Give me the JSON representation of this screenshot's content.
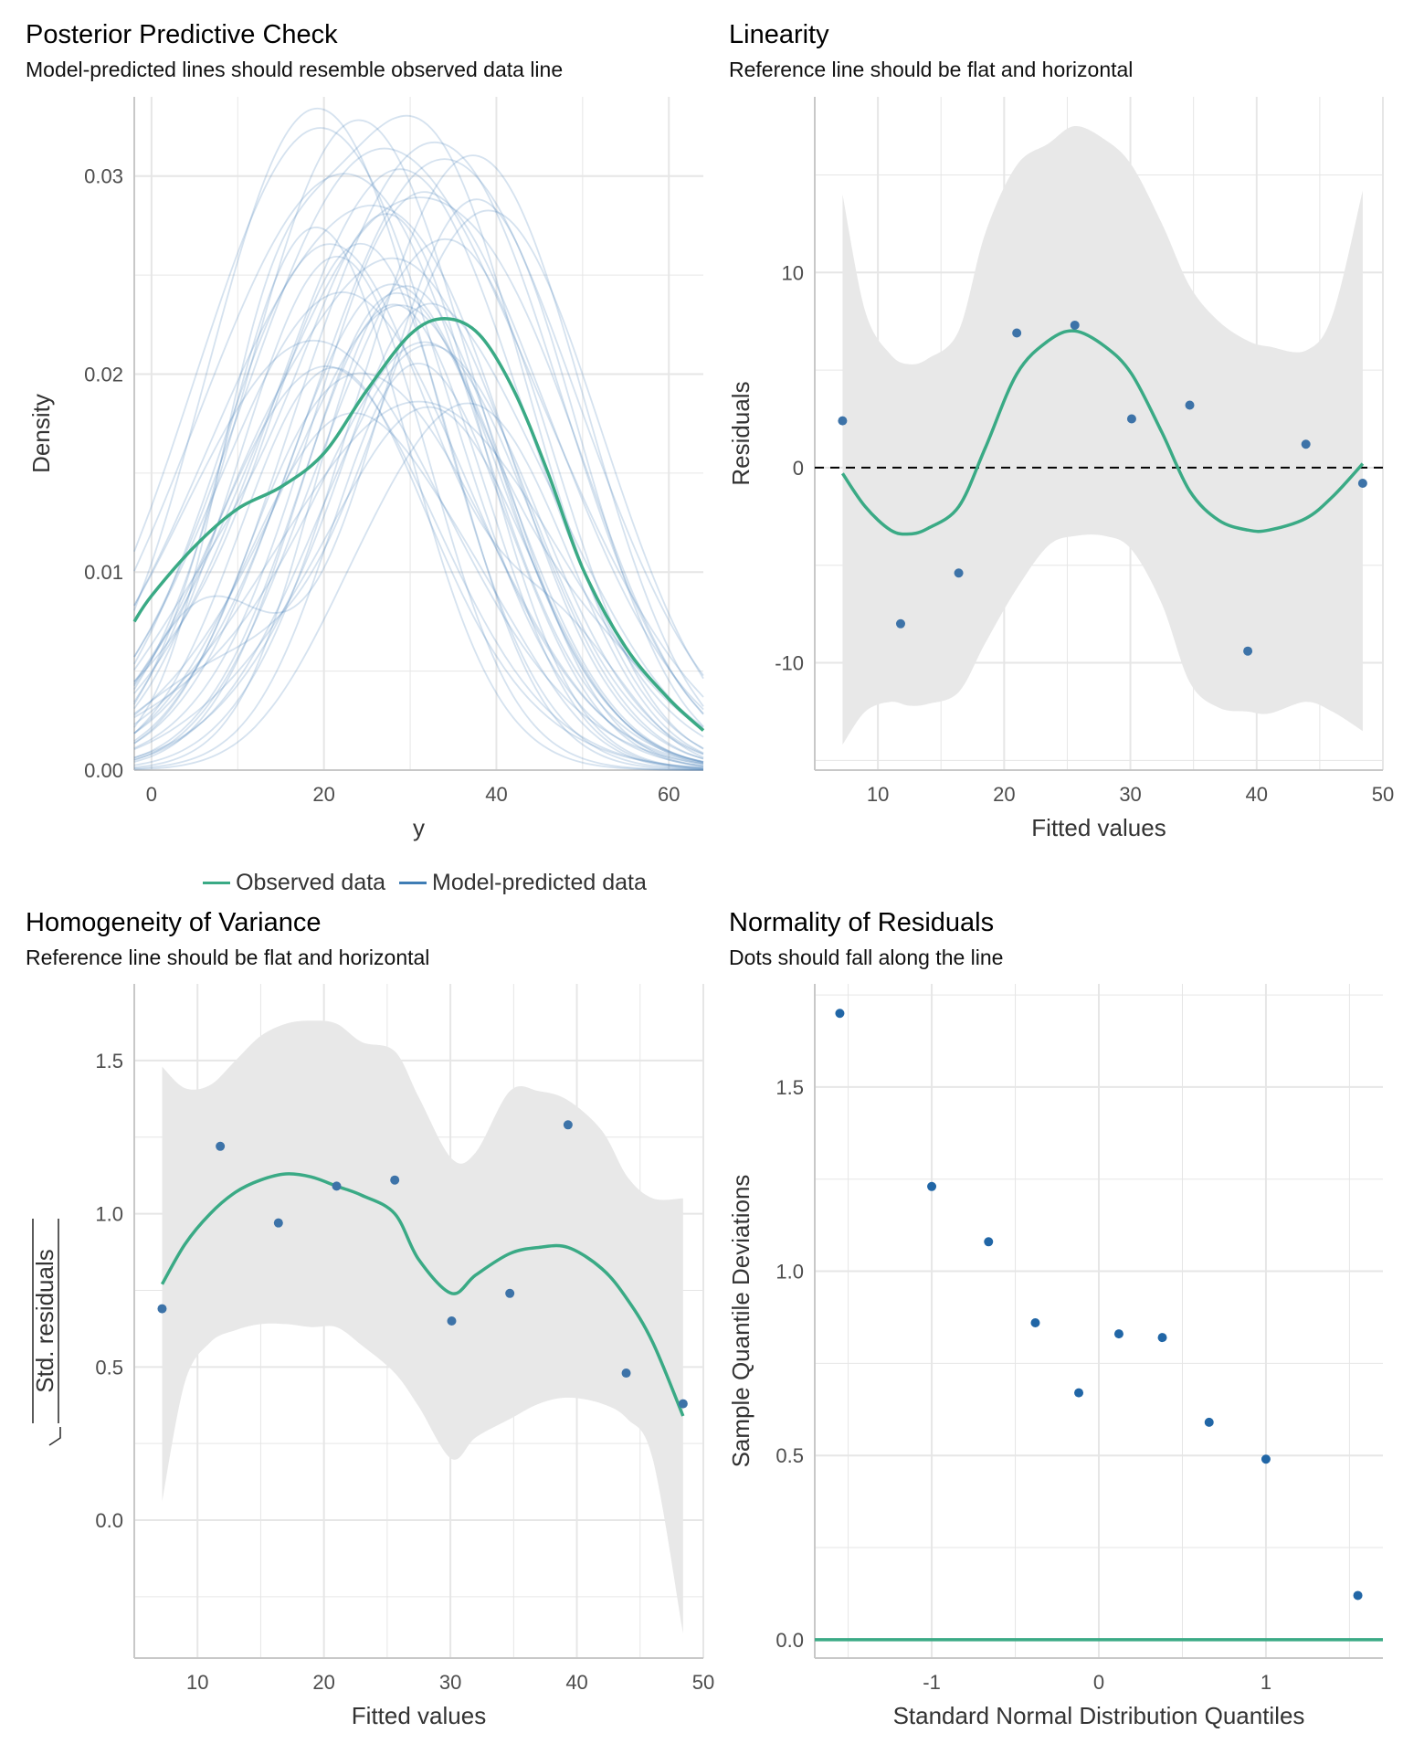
{
  "colors": {
    "observed": "#3aaa85",
    "predicted": "#3f7db5",
    "points": "#3d73a8",
    "band": "#e8e8e8",
    "grid": "#e6e6e6"
  },
  "panels": {
    "ppc": {
      "title": "Posterior Predictive Check",
      "subtitle": "Model-predicted lines should resemble observed data line",
      "xlabel": "y",
      "ylabel": "Density",
      "xticks": [
        "0",
        "20",
        "40",
        "60"
      ],
      "yticks": [
        "0.00",
        "0.01",
        "0.02",
        "0.03"
      ],
      "legend": {
        "observed": "Observed data",
        "predicted": "Model-predicted data"
      }
    },
    "linearity": {
      "title": "Linearity",
      "subtitle": "Reference line should be flat and horizontal",
      "xlabel": "Fitted values",
      "ylabel": "Residuals",
      "xticks": [
        "10",
        "20",
        "30",
        "40",
        "50"
      ],
      "yticks": [
        "-10",
        "0",
        "10"
      ]
    },
    "homogeneity": {
      "title": "Homogeneity of Variance",
      "subtitle": "Reference line should be flat and horizontal",
      "xlabel": "Fitted values",
      "ylabel": "Std. residuals",
      "xticks": [
        "10",
        "20",
        "30",
        "40",
        "50"
      ],
      "yticks": [
        "0.0",
        "0.5",
        "1.0",
        "1.5"
      ]
    },
    "normality": {
      "title": "Normality of Residuals",
      "subtitle": "Dots should fall along the line",
      "xlabel": "Standard Normal Distribution Quantiles",
      "ylabel": "Sample Quantile Deviations",
      "xticks": [
        "-1",
        "0",
        "1"
      ],
      "yticks": [
        "0.0",
        "0.5",
        "1.0",
        "1.5"
      ]
    }
  },
  "chart_data": [
    {
      "type": "line",
      "title": "Posterior Predictive Check",
      "subtitle": "Model-predicted lines should resemble observed data line",
      "xlabel": "y",
      "ylabel": "Density",
      "xlim": [
        -2,
        64
      ],
      "ylim": [
        0,
        0.034
      ],
      "grid": true,
      "legend": "bottom",
      "series": [
        {
          "name": "Observed data",
          "x": [
            -2,
            0,
            5,
            10,
            15,
            20,
            25,
            30,
            34,
            38,
            42,
            46,
            50,
            55,
            60,
            64
          ],
          "values": [
            0.0075,
            0.0088,
            0.0113,
            0.0132,
            0.0143,
            0.016,
            0.0192,
            0.022,
            0.0228,
            0.022,
            0.0192,
            0.015,
            0.0102,
            0.0062,
            0.0036,
            0.002
          ]
        },
        {
          "name": "Model-predicted data",
          "draws": 40,
          "x_range": [
            -2,
            64
          ],
          "peak_y_range": [
            0.018,
            0.0335
          ],
          "peak_x_range": [
            18,
            40
          ]
        }
      ]
    },
    {
      "type": "scatter",
      "title": "Linearity",
      "subtitle": "Reference line should be flat and horizontal",
      "xlabel": "Fitted values",
      "ylabel": "Residuals",
      "xlim": [
        5,
        50
      ],
      "ylim": [
        -15.5,
        19
      ],
      "grid": true,
      "reference_line": 0,
      "points": [
        {
          "x": 7.2,
          "y": 2.4
        },
        {
          "x": 11.8,
          "y": -8.0
        },
        {
          "x": 16.4,
          "y": -5.4
        },
        {
          "x": 21.0,
          "y": 6.9
        },
        {
          "x": 25.6,
          "y": 7.3
        },
        {
          "x": 30.1,
          "y": 2.5
        },
        {
          "x": 34.7,
          "y": 3.2
        },
        {
          "x": 39.3,
          "y": -9.4
        },
        {
          "x": 43.9,
          "y": 1.2
        },
        {
          "x": 48.4,
          "y": -0.8
        }
      ],
      "smooth": {
        "x": [
          7.2,
          9,
          11,
          12.5,
          14,
          16.4,
          18.5,
          21,
          23.5,
          25.6,
          28,
          30.1,
          32.5,
          34.7,
          37,
          39.3,
          41,
          43.9,
          46,
          48.4
        ],
        "y": [
          -0.3,
          -2.0,
          -3.2,
          -3.4,
          -3.1,
          -2.0,
          1.0,
          4.8,
          6.5,
          7.0,
          6.2,
          4.8,
          1.8,
          -1.2,
          -2.7,
          -3.2,
          -3.2,
          -2.6,
          -1.5,
          0.2
        ],
        "lower": [
          -14.2,
          -12.5,
          -12.0,
          -12.2,
          -12.1,
          -11.5,
          -9.0,
          -6.2,
          -4.0,
          -3.5,
          -3.5,
          -4.2,
          -7.0,
          -11.0,
          -12.3,
          -12.5,
          -12.6,
          -12.0,
          -12.5,
          -13.5
        ],
        "upper": [
          14.0,
          8.0,
          5.8,
          5.3,
          5.6,
          7.0,
          12.0,
          15.5,
          16.6,
          17.5,
          16.8,
          15.5,
          12.5,
          9.3,
          7.5,
          6.5,
          6.2,
          6.0,
          7.8,
          14.2
        ]
      }
    },
    {
      "type": "scatter",
      "title": "Homogeneity of Variance",
      "subtitle": "Reference line should be flat and horizontal",
      "xlabel": "Fitted values",
      "ylabel": "Std. residuals",
      "xlim": [
        5,
        50
      ],
      "ylim": [
        -0.45,
        1.75
      ],
      "grid": true,
      "points": [
        {
          "x": 7.2,
          "y": 0.69
        },
        {
          "x": 11.8,
          "y": 1.22
        },
        {
          "x": 16.4,
          "y": 0.97
        },
        {
          "x": 21.0,
          "y": 1.09
        },
        {
          "x": 25.6,
          "y": 1.11
        },
        {
          "x": 30.1,
          "y": 0.65
        },
        {
          "x": 34.7,
          "y": 0.74
        },
        {
          "x": 39.3,
          "y": 1.29
        },
        {
          "x": 43.9,
          "y": 0.48
        },
        {
          "x": 48.4,
          "y": 0.38
        }
      ],
      "smooth": {
        "x": [
          7.2,
          9,
          11,
          13,
          15,
          17,
          19,
          21,
          23,
          25.6,
          27.5,
          30.1,
          32,
          34.7,
          37,
          39.3,
          42,
          44,
          46,
          48.4
        ],
        "y": [
          0.77,
          0.9,
          1.0,
          1.07,
          1.11,
          1.13,
          1.12,
          1.09,
          1.06,
          1.0,
          0.85,
          0.74,
          0.8,
          0.87,
          0.89,
          0.89,
          0.82,
          0.72,
          0.58,
          0.34
        ],
        "lower": [
          0.06,
          0.45,
          0.58,
          0.62,
          0.64,
          0.64,
          0.63,
          0.63,
          0.57,
          0.48,
          0.37,
          0.2,
          0.27,
          0.33,
          0.38,
          0.4,
          0.38,
          0.33,
          0.2,
          -0.37
        ],
        "upper": [
          1.48,
          1.41,
          1.42,
          1.5,
          1.58,
          1.62,
          1.63,
          1.62,
          1.56,
          1.53,
          1.38,
          1.18,
          1.2,
          1.4,
          1.4,
          1.37,
          1.27,
          1.12,
          1.05,
          1.05
        ]
      }
    },
    {
      "type": "scatter",
      "title": "Normality of Residuals",
      "subtitle": "Dots should fall along the line",
      "xlabel": "Standard Normal Distribution Quantiles",
      "ylabel": "Sample Quantile Deviations",
      "xlim": [
        -1.7,
        1.7
      ],
      "ylim": [
        -0.05,
        1.78
      ],
      "grid": true,
      "reference_line": 0,
      "points": [
        {
          "x": -1.55,
          "y": 1.7
        },
        {
          "x": -1.0,
          "y": 1.23
        },
        {
          "x": -0.66,
          "y": 1.08
        },
        {
          "x": -0.38,
          "y": 0.86
        },
        {
          "x": -0.12,
          "y": 0.67
        },
        {
          "x": 0.12,
          "y": 0.83
        },
        {
          "x": 0.38,
          "y": 0.82
        },
        {
          "x": 0.66,
          "y": 0.59
        },
        {
          "x": 1.0,
          "y": 0.49
        },
        {
          "x": 1.55,
          "y": 0.12
        }
      ]
    }
  ]
}
